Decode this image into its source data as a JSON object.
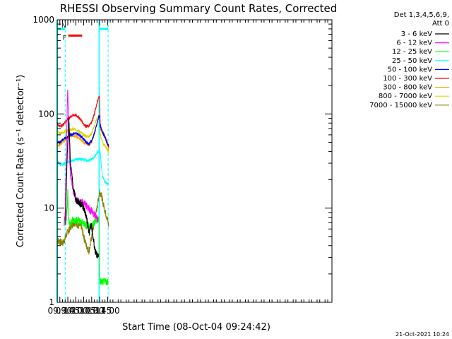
{
  "chart_data": {
    "type": "line",
    "title": "RHESSI Observing Summary Count Rates, Corrected",
    "ylabel": "Corrected Count Rate (s⁻¹ detector⁻¹)",
    "xlabel": "Start Time (08-Oct-04 09:24:42)",
    "x_unit": "minutes of day (UT)",
    "xlim": [
      565,
      1083
    ],
    "ylim": [
      1,
      1000
    ],
    "yscale": "log",
    "x_ticks": [
      {
        "v": 570,
        "label": "09:30"
      },
      {
        "v": 585,
        "label": "09:45"
      },
      {
        "v": 600,
        "label": "10:00"
      },
      {
        "v": 615,
        "label": "10:15"
      },
      {
        "v": 630,
        "label": "10:30"
      },
      {
        "v": 645,
        "label": "10:45"
      },
      {
        "v": 660,
        "label": "11:00"
      }
    ],
    "y_ticks": [
      {
        "v": 1,
        "label": "1"
      },
      {
        "v": 10,
        "label": "10"
      },
      {
        "v": 100,
        "label": "100"
      },
      {
        "v": 1000,
        "label": "1000"
      }
    ],
    "legend_header": [
      "Det 1,3,4,5,6,9,",
      "Att 0"
    ],
    "legend_placement": "right",
    "series": [
      {
        "name": "3 - 6 keV",
        "color": "#000000",
        "x": [
          581,
          582,
          583,
          584,
          585,
          586,
          587,
          588,
          589,
          590,
          592,
          594,
          596,
          598,
          600,
          603,
          606,
          609,
          612,
          615,
          618,
          620,
          622,
          624,
          626,
          628,
          630,
          632,
          634,
          636,
          638,
          640,
          643
        ],
        "y": [
          7,
          16,
          25,
          38,
          50,
          75,
          90,
          70,
          42,
          30,
          24,
          19,
          15,
          14,
          12,
          12,
          11.5,
          11,
          11,
          10,
          9,
          8,
          7,
          6,
          5.5,
          6.5,
          6.5,
          5,
          4.5,
          3.6,
          3.3,
          3.2,
          3.1
        ]
      },
      {
        "name": "6 - 12 keV",
        "color": "#ff00ff",
        "x": [
          578,
          580,
          581,
          582,
          583,
          584,
          585,
          586,
          587,
          588,
          589,
          590,
          592,
          594,
          596,
          598,
          600,
          603,
          606,
          609,
          612,
          615,
          618,
          621,
          624,
          627,
          630,
          633,
          636,
          639,
          642
        ],
        "y": [
          7,
          9,
          17,
          30,
          60,
          130,
          175,
          100,
          60,
          38,
          28,
          23,
          20,
          17,
          15,
          14,
          13,
          12,
          12,
          11.5,
          11.5,
          11.5,
          11,
          10.5,
          10,
          9.5,
          9.5,
          8.5,
          8.5,
          8,
          7.5
        ]
      },
      {
        "name": "12 - 25 keV",
        "color": "#00ff00",
        "x": [
          578,
          582,
          584,
          585,
          586,
          587,
          590,
          595,
          600,
          605,
          610,
          615,
          620,
          625,
          630,
          635,
          640,
          643,
          644,
          645,
          646,
          647,
          648,
          650,
          653,
          656,
          660,
          661
        ],
        "y": [
          7,
          8,
          11,
          15,
          9,
          7,
          7,
          7.5,
          7.5,
          7.5,
          7,
          7,
          6.5,
          6.5,
          6.5,
          7,
          7.5,
          7.5,
          7.5,
          1.7,
          1.7,
          1.65,
          1.65,
          1.65,
          1.65,
          1.65,
          1.65,
          1.65
        ]
      },
      {
        "name": "25 - 50 keV",
        "color": "#00ffff",
        "x": [
          565,
          568,
          572,
          576,
          580,
          584,
          588,
          592,
          596,
          600,
          605,
          610,
          615,
          620,
          625,
          630,
          635,
          640,
          643,
          644,
          645,
          646,
          650,
          655,
          660,
          662
        ],
        "y": [
          32,
          30,
          29,
          29,
          30,
          31,
          31,
          32,
          32,
          33,
          33,
          33,
          33,
          32,
          32,
          33,
          35,
          38,
          40,
          40,
          42,
          40,
          22,
          19,
          18,
          18
        ]
      },
      {
        "name": "50 - 100 keV",
        "color": "#0000ff",
        "x": [
          565,
          570,
          575,
          580,
          585,
          590,
          595,
          600,
          605,
          610,
          615,
          620,
          625,
          630,
          635,
          640,
          643,
          645,
          646,
          648,
          652,
          656,
          660,
          662
        ],
        "y": [
          50,
          50,
          53,
          55,
          58,
          60,
          62,
          62,
          61,
          58,
          54,
          50,
          48,
          52,
          62,
          78,
          92,
          95,
          75,
          68,
          62,
          55,
          48,
          45
        ]
      },
      {
        "name": "100 - 300 keV",
        "color": "#ff0000",
        "x": [
          565,
          570,
          575,
          580,
          585,
          590,
          595,
          600,
          605,
          610,
          615,
          620,
          625,
          630,
          635,
          640,
          643,
          645,
          646,
          648,
          652,
          656,
          660,
          662
        ],
        "y": [
          78,
          74,
          76,
          82,
          88,
          93,
          97,
          97,
          93,
          86,
          78,
          74,
          74,
          82,
          100,
          130,
          150,
          152,
          80,
          70,
          62,
          55,
          47,
          45
        ]
      },
      {
        "name": "300 - 800 keV",
        "color": "#ffa500",
        "x": [
          565,
          570,
          575,
          580,
          585,
          590,
          595,
          600,
          605,
          610,
          615,
          620,
          625,
          630,
          635,
          640,
          643,
          645,
          646,
          648,
          652,
          656,
          660,
          662
        ],
        "y": [
          46,
          47,
          50,
          53,
          56,
          58,
          59,
          58,
          56,
          53,
          50,
          48,
          47,
          50,
          60,
          80,
          92,
          95,
          75,
          68,
          60,
          55,
          50,
          40
        ]
      },
      {
        "name": "800 - 7000 keV",
        "color": "#d8d800",
        "x": [
          565,
          570,
          575,
          580,
          585,
          590,
          595,
          600,
          605,
          610,
          615,
          620,
          625,
          630,
          635,
          640,
          643,
          645,
          646,
          648,
          652,
          656,
          660,
          662
        ],
        "y": [
          65,
          63,
          63,
          65,
          67,
          68,
          69,
          68,
          66,
          63,
          60,
          58,
          58,
          62,
          75,
          90,
          92,
          95,
          62,
          55,
          48,
          45,
          42,
          38
        ]
      },
      {
        "name": "7000 - 15000 keV",
        "color": "#8b8000",
        "x": [
          565,
          568,
          572,
          576,
          580,
          584,
          588,
          592,
          596,
          600,
          605,
          610,
          615,
          620,
          625,
          630,
          635,
          640,
          643,
          645,
          648,
          652,
          656,
          660,
          662
        ],
        "y": [
          4.5,
          4.5,
          4.3,
          4.3,
          4.8,
          5.5,
          6,
          6.5,
          7,
          7,
          6.5,
          6.5,
          5,
          4,
          3.5,
          5,
          7,
          10,
          13,
          15,
          14,
          11,
          9,
          7.5,
          6.5
        ]
      }
    ],
    "annotations": [
      {
        "label": "F",
        "color": "#ff0000",
        "start": 586,
        "end": 612,
        "level": 680
      },
      {
        "label": "N",
        "color": "#00ffff",
        "start": 565,
        "end": 580,
        "level": 800
      },
      {
        "color": "#00ffff",
        "start": 644,
        "end": 661,
        "level": 800
      }
    ],
    "night_markers": [
      580,
      644,
      661
    ],
    "timestamp": "21-Oct-2021 10:24"
  }
}
